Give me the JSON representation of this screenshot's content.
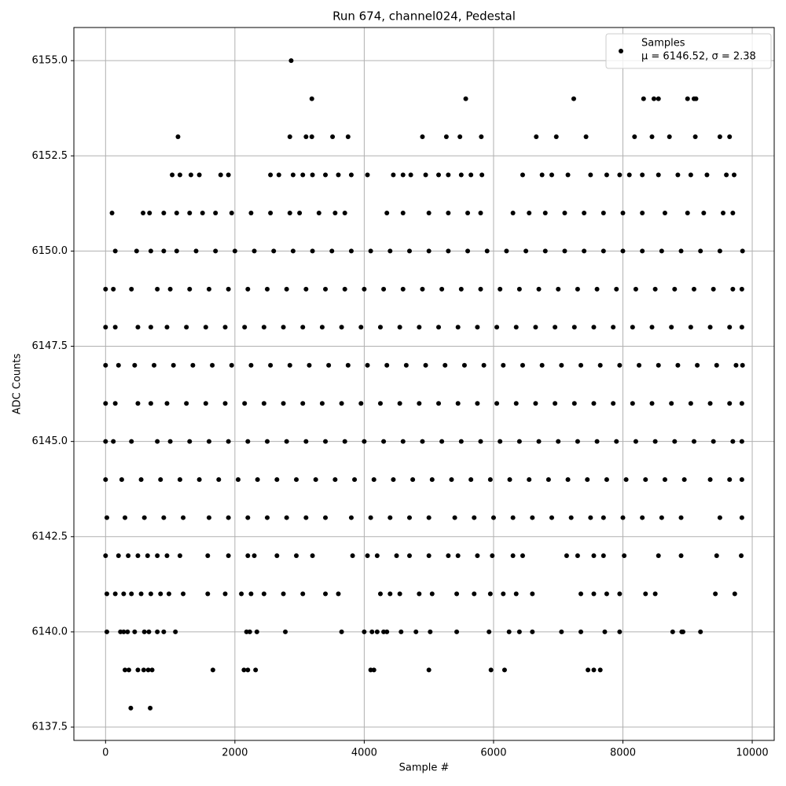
{
  "chart_data": {
    "type": "scatter",
    "title": "Run 674, channel024, Pedestal",
    "x_label": "Sample #",
    "y_label": "ADC Counts",
    "xlim": [
      -490,
      10340
    ],
    "ylim": [
      6137.15,
      6155.87
    ],
    "xticks": [
      0,
      2000,
      4000,
      6000,
      8000,
      10000
    ],
    "yticks": [
      {
        "value": 6137.5,
        "label": "6137.5"
      },
      {
        "value": 6140,
        "label": "6140.0"
      },
      {
        "value": 6142.5,
        "label": "6142.5"
      },
      {
        "value": 6145,
        "label": "6145.0"
      },
      {
        "value": 6147.5,
        "label": "6147.5"
      },
      {
        "value": 6150,
        "label": "6150.0"
      },
      {
        "value": 6152.5,
        "label": "6152.5"
      },
      {
        "value": 6155,
        "label": "6155.0"
      }
    ],
    "grid": true,
    "legend_position": "upper right",
    "series": [
      {
        "name": "Samples",
        "stats": "μ = 6146.52, σ = 2.38",
        "color": "#000000",
        "x": [
          2870,
          3190,
          5570,
          7240,
          8320,
          8480,
          8550,
          9000,
          9100,
          9130,
          1120,
          2850,
          3100,
          3190,
          3510,
          3750,
          4900,
          5270,
          5480,
          5810,
          6660,
          6970,
          7430,
          8180,
          8450,
          8720,
          9120,
          9500,
          9650,
          1030,
          1150,
          1320,
          1450,
          1780,
          1900,
          2550,
          2680,
          2900,
          3050,
          3200,
          3400,
          3600,
          3800,
          4050,
          4450,
          4600,
          4720,
          4950,
          5150,
          5300,
          5500,
          5650,
          5820,
          6450,
          6750,
          6900,
          7150,
          7500,
          7750,
          7950,
          8100,
          8300,
          8550,
          8850,
          9050,
          9300,
          9600,
          9720,
          100,
          580,
          680,
          900,
          1100,
          1300,
          1500,
          1700,
          1950,
          2250,
          2550,
          2850,
          3000,
          3300,
          3550,
          3700,
          4350,
          4600,
          5000,
          5300,
          5600,
          5800,
          6300,
          6550,
          6800,
          7100,
          7400,
          7700,
          8000,
          8300,
          8650,
          9000,
          9250,
          9550,
          9700,
          150,
          480,
          700,
          900,
          1100,
          1400,
          1700,
          2000,
          2300,
          2600,
          2900,
          3200,
          3500,
          3800,
          4100,
          4400,
          4700,
          5000,
          5300,
          5600,
          5900,
          6200,
          6500,
          6800,
          7100,
          7400,
          7700,
          8000,
          8300,
          8600,
          8900,
          9200,
          9500,
          9850,
          0,
          120,
          400,
          800,
          1000,
          1300,
          1600,
          1900,
          2200,
          2500,
          2800,
          3100,
          3400,
          3700,
          4000,
          4300,
          4600,
          4900,
          5200,
          5500,
          5800,
          6100,
          6400,
          6700,
          7000,
          7300,
          7600,
          7900,
          8200,
          8500,
          8800,
          9100,
          9400,
          9700,
          9840,
          0,
          150,
          500,
          700,
          950,
          1250,
          1550,
          1850,
          2150,
          2450,
          2750,
          3050,
          3350,
          3650,
          3950,
          4250,
          4550,
          4850,
          5150,
          5450,
          5750,
          6050,
          6350,
          6650,
          6950,
          7250,
          7550,
          7850,
          8150,
          8450,
          8750,
          9050,
          9350,
          9650,
          9840,
          0,
          200,
          450,
          750,
          1050,
          1350,
          1650,
          1950,
          2250,
          2550,
          2850,
          3150,
          3450,
          3750,
          4050,
          4350,
          4650,
          4950,
          5250,
          5550,
          5850,
          6150,
          6450,
          6750,
          7050,
          7350,
          7650,
          7950,
          8250,
          8550,
          8850,
          9150,
          9450,
          9750,
          9850,
          0,
          150,
          500,
          700,
          950,
          1250,
          1550,
          1850,
          2150,
          2450,
          2750,
          3050,
          3350,
          3650,
          3950,
          4250,
          4550,
          4850,
          5150,
          5450,
          5750,
          6050,
          6350,
          6650,
          6950,
          7250,
          7550,
          7850,
          8150,
          8450,
          8750,
          9050,
          9350,
          9650,
          9840,
          0,
          120,
          400,
          800,
          1000,
          1300,
          1600,
          1900,
          2200,
          2500,
          2800,
          3100,
          3400,
          3700,
          4000,
          4300,
          4600,
          4900,
          5200,
          5500,
          5800,
          6100,
          6400,
          6700,
          7000,
          7300,
          7600,
          7900,
          8200,
          8500,
          8800,
          9100,
          9400,
          9700,
          9840,
          0,
          250,
          550,
          850,
          1150,
          1450,
          1750,
          2050,
          2350,
          2650,
          2950,
          3250,
          3550,
          3850,
          4150,
          4450,
          4750,
          5050,
          5350,
          5650,
          5950,
          6250,
          6550,
          6850,
          7150,
          7450,
          7750,
          8050,
          8350,
          8650,
          8950,
          9350,
          9650,
          9840,
          20,
          300,
          600,
          900,
          1200,
          1600,
          1900,
          2200,
          2500,
          2800,
          3100,
          3400,
          3800,
          4100,
          4400,
          4700,
          5000,
          5400,
          5700,
          6000,
          6300,
          6600,
          6900,
          7200,
          7500,
          7700,
          8000,
          8300,
          8600,
          8900,
          9500,
          9840,
          0,
          200,
          350,
          500,
          650,
          800,
          950,
          1150,
          1580,
          1900,
          2200,
          2300,
          2650,
          2950,
          3200,
          3820,
          4050,
          4200,
          4500,
          4700,
          5000,
          5300,
          5450,
          5750,
          5980,
          6300,
          6450,
          7130,
          7300,
          7550,
          7700,
          8020,
          8550,
          8900,
          9450,
          9830,
          20,
          150,
          280,
          400,
          550,
          700,
          850,
          980,
          1200,
          1580,
          1850,
          2100,
          2250,
          2450,
          2750,
          3050,
          3400,
          3600,
          4250,
          4400,
          4550,
          4850,
          5050,
          5430,
          5700,
          5950,
          6150,
          6350,
          6600,
          7350,
          7550,
          7750,
          7950,
          8350,
          8500,
          9430,
          9730,
          20,
          230,
          280,
          340,
          450,
          600,
          670,
          800,
          900,
          1080,
          2180,
          2230,
          2340,
          2780,
          3650,
          4000,
          4120,
          4200,
          4300,
          4350,
          4570,
          4800,
          5020,
          5430,
          5930,
          6240,
          6400,
          6600,
          7050,
          7350,
          7720,
          7950,
          8770,
          8910,
          8930,
          9200,
          300,
          360,
          500,
          590,
          660,
          720,
          1660,
          2140,
          2200,
          2320,
          4100,
          4150,
          5000,
          5960,
          6170,
          7460,
          7550,
          7650,
          390,
          690
        ],
        "values": [
          6155,
          6154,
          6154,
          6154,
          6154,
          6154,
          6154,
          6154,
          6154,
          6154,
          6153,
          6153,
          6153,
          6153,
          6153,
          6153,
          6153,
          6153,
          6153,
          6153,
          6153,
          6153,
          6153,
          6153,
          6153,
          6153,
          6153,
          6153,
          6153,
          6152,
          6152,
          6152,
          6152,
          6152,
          6152,
          6152,
          6152,
          6152,
          6152,
          6152,
          6152,
          6152,
          6152,
          6152,
          6152,
          6152,
          6152,
          6152,
          6152,
          6152,
          6152,
          6152,
          6152,
          6152,
          6152,
          6152,
          6152,
          6152,
          6152,
          6152,
          6152,
          6152,
          6152,
          6152,
          6152,
          6152,
          6152,
          6152,
          6151,
          6151,
          6151,
          6151,
          6151,
          6151,
          6151,
          6151,
          6151,
          6151,
          6151,
          6151,
          6151,
          6151,
          6151,
          6151,
          6151,
          6151,
          6151,
          6151,
          6151,
          6151,
          6151,
          6151,
          6151,
          6151,
          6151,
          6151,
          6151,
          6151,
          6151,
          6151,
          6151,
          6151,
          6151,
          6150,
          6150,
          6150,
          6150,
          6150,
          6150,
          6150,
          6150,
          6150,
          6150,
          6150,
          6150,
          6150,
          6150,
          6150,
          6150,
          6150,
          6150,
          6150,
          6150,
          6150,
          6150,
          6150,
          6150,
          6150,
          6150,
          6150,
          6150,
          6150,
          6150,
          6150,
          6150,
          6150,
          6150,
          6149,
          6149,
          6149,
          6149,
          6149,
          6149,
          6149,
          6149,
          6149,
          6149,
          6149,
          6149,
          6149,
          6149,
          6149,
          6149,
          6149,
          6149,
          6149,
          6149,
          6149,
          6149,
          6149,
          6149,
          6149,
          6149,
          6149,
          6149,
          6149,
          6149,
          6149,
          6149,
          6149,
          6149,
          6149,
          6148,
          6148,
          6148,
          6148,
          6148,
          6148,
          6148,
          6148,
          6148,
          6148,
          6148,
          6148,
          6148,
          6148,
          6148,
          6148,
          6148,
          6148,
          6148,
          6148,
          6148,
          6148,
          6148,
          6148,
          6148,
          6148,
          6148,
          6148,
          6148,
          6148,
          6148,
          6148,
          6148,
          6148,
          6148,
          6147,
          6147,
          6147,
          6147,
          6147,
          6147,
          6147,
          6147,
          6147,
          6147,
          6147,
          6147,
          6147,
          6147,
          6147,
          6147,
          6147,
          6147,
          6147,
          6147,
          6147,
          6147,
          6147,
          6147,
          6147,
          6147,
          6147,
          6147,
          6147,
          6147,
          6147,
          6147,
          6147,
          6147,
          6147,
          6146,
          6146,
          6146,
          6146,
          6146,
          6146,
          6146,
          6146,
          6146,
          6146,
          6146,
          6146,
          6146,
          6146,
          6146,
          6146,
          6146,
          6146,
          6146,
          6146,
          6146,
          6146,
          6146,
          6146,
          6146,
          6146,
          6146,
          6146,
          6146,
          6146,
          6146,
          6146,
          6146,
          6146,
          6146,
          6145,
          6145,
          6145,
          6145,
          6145,
          6145,
          6145,
          6145,
          6145,
          6145,
          6145,
          6145,
          6145,
          6145,
          6145,
          6145,
          6145,
          6145,
          6145,
          6145,
          6145,
          6145,
          6145,
          6145,
          6145,
          6145,
          6145,
          6145,
          6145,
          6145,
          6145,
          6145,
          6145,
          6145,
          6145,
          6144,
          6144,
          6144,
          6144,
          6144,
          6144,
          6144,
          6144,
          6144,
          6144,
          6144,
          6144,
          6144,
          6144,
          6144,
          6144,
          6144,
          6144,
          6144,
          6144,
          6144,
          6144,
          6144,
          6144,
          6144,
          6144,
          6144,
          6144,
          6144,
          6144,
          6144,
          6144,
          6144,
          6144,
          6143,
          6143,
          6143,
          6143,
          6143,
          6143,
          6143,
          6143,
          6143,
          6143,
          6143,
          6143,
          6143,
          6143,
          6143,
          6143,
          6143,
          6143,
          6143,
          6143,
          6143,
          6143,
          6143,
          6143,
          6143,
          6143,
          6143,
          6143,
          6143,
          6143,
          6143,
          6143,
          6142,
          6142,
          6142,
          6142,
          6142,
          6142,
          6142,
          6142,
          6142,
          6142,
          6142,
          6142,
          6142,
          6142,
          6142,
          6142,
          6142,
          6142,
          6142,
          6142,
          6142,
          6142,
          6142,
          6142,
          6142,
          6142,
          6142,
          6142,
          6142,
          6142,
          6142,
          6142,
          6142,
          6142,
          6142,
          6142,
          6141,
          6141,
          6141,
          6141,
          6141,
          6141,
          6141,
          6141,
          6141,
          6141,
          6141,
          6141,
          6141,
          6141,
          6141,
          6141,
          6141,
          6141,
          6141,
          6141,
          6141,
          6141,
          6141,
          6141,
          6141,
          6141,
          6141,
          6141,
          6141,
          6141,
          6141,
          6141,
          6141,
          6141,
          6141,
          6141,
          6141,
          6140,
          6140,
          6140,
          6140,
          6140,
          6140,
          6140,
          6140,
          6140,
          6140,
          6140,
          6140,
          6140,
          6140,
          6140,
          6140,
          6140,
          6140,
          6140,
          6140,
          6140,
          6140,
          6140,
          6140,
          6140,
          6140,
          6140,
          6140,
          6140,
          6140,
          6140,
          6140,
          6140,
          6140,
          6140,
          6140,
          6139,
          6139,
          6139,
          6139,
          6139,
          6139,
          6139,
          6139,
          6139,
          6139,
          6139,
          6139,
          6139,
          6139,
          6139,
          6139,
          6139,
          6139,
          6138,
          6138
        ]
      }
    ]
  }
}
